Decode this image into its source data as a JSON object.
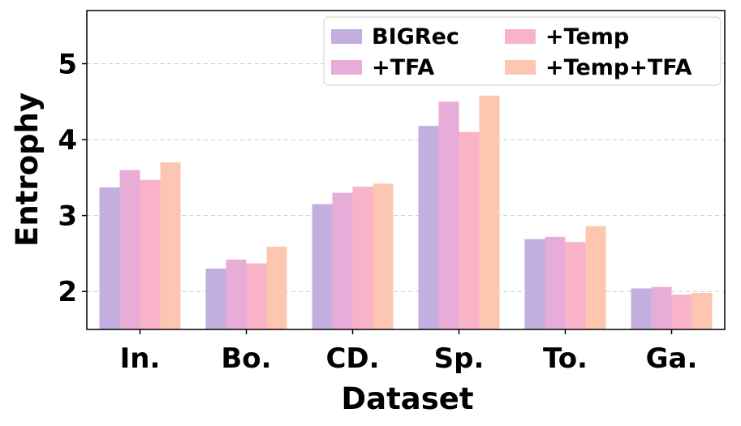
{
  "chart_data": {
    "type": "bar",
    "xlabel": "Dataset",
    "ylabel": "Entrophy",
    "categories": [
      "In.",
      "Bo.",
      "CD.",
      "Sp.",
      "To.",
      "Ga."
    ],
    "ylim": [
      1.5,
      5.7
    ],
    "yticks": [
      2,
      3,
      4,
      5
    ],
    "grid": "y-dashed",
    "legend_position": "top-right",
    "series": [
      {
        "name": "BIGRec",
        "color": "#c2aedf",
        "values": [
          3.37,
          2.3,
          3.15,
          4.18,
          2.69,
          2.04
        ]
      },
      {
        "name": "+TFA",
        "color": "#e8acd8",
        "values": [
          3.6,
          2.42,
          3.3,
          4.5,
          2.72,
          2.06
        ]
      },
      {
        "name": "+Temp",
        "color": "#f8b3c8",
        "values": [
          3.47,
          2.37,
          3.38,
          4.1,
          2.65,
          1.96
        ]
      },
      {
        "name": "+Temp+TFA",
        "color": "#fdc6b0",
        "values": [
          3.7,
          2.59,
          3.42,
          4.58,
          2.86,
          1.98
        ]
      }
    ]
  }
}
